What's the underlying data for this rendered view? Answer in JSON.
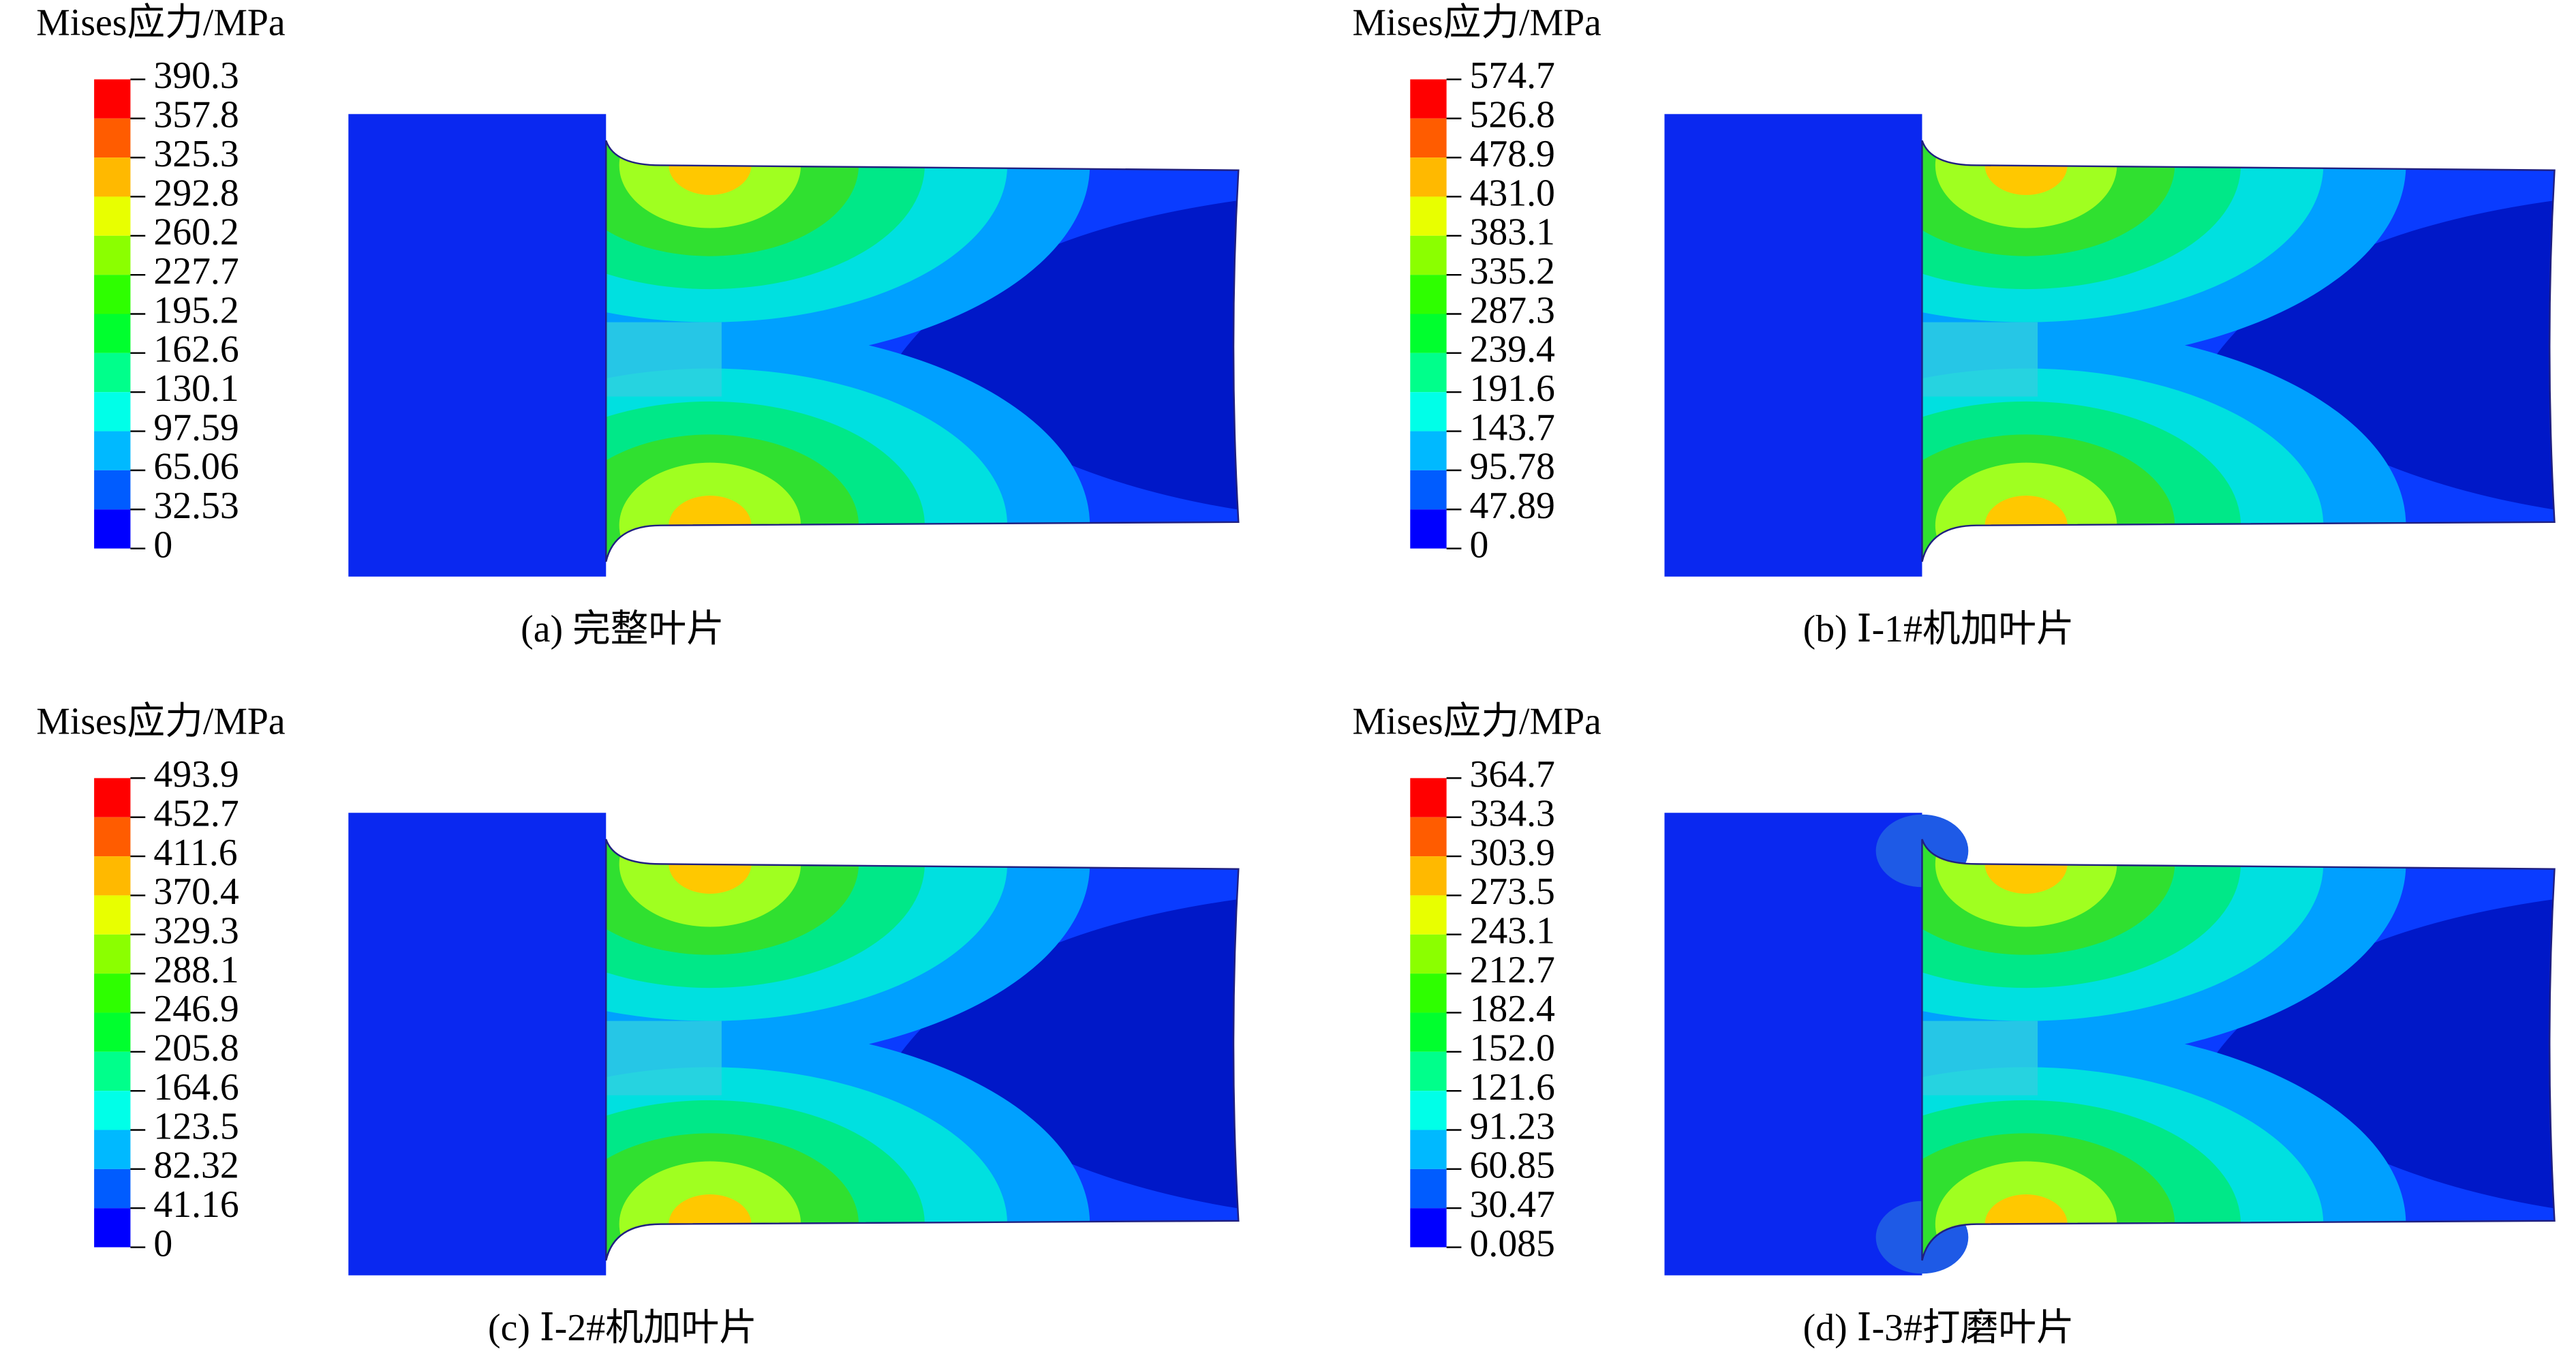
{
  "panels": [
    {
      "legend_title": "Mises应力/MPa",
      "levels": [
        "390.3",
        "357.8",
        "325.3",
        "292.8",
        "260.2",
        "227.7",
        "195.2",
        "162.6",
        "130.1",
        "97.59",
        "65.06",
        "32.53",
        "0"
      ],
      "caption": "(a) 完整叶片"
    },
    {
      "legend_title": "Mises应力/MPa",
      "levels": [
        "574.7",
        "526.8",
        "478.9",
        "431.0",
        "383.1",
        "335.2",
        "287.3",
        "239.4",
        "191.6",
        "143.7",
        "95.78",
        "47.89",
        "0"
      ],
      "caption": "(b) Ⅰ-1#机加叶片"
    },
    {
      "legend_title": "Mises应力/MPa",
      "levels": [
        "493.9",
        "452.7",
        "411.6",
        "370.4",
        "329.3",
        "288.1",
        "246.9",
        "205.8",
        "164.6",
        "123.5",
        "82.32",
        "41.16",
        "0"
      ],
      "caption": "(c) Ⅰ-2#机加叶片"
    },
    {
      "legend_title": "Mises应力/MPa",
      "levels": [
        "364.7",
        "334.3",
        "303.9",
        "273.5",
        "243.1",
        "212.7",
        "182.4",
        "152.0",
        "121.6",
        "91.23",
        "60.85",
        "30.47",
        "0.085"
      ],
      "caption": "(d) Ⅰ-3#打磨叶片"
    }
  ]
}
